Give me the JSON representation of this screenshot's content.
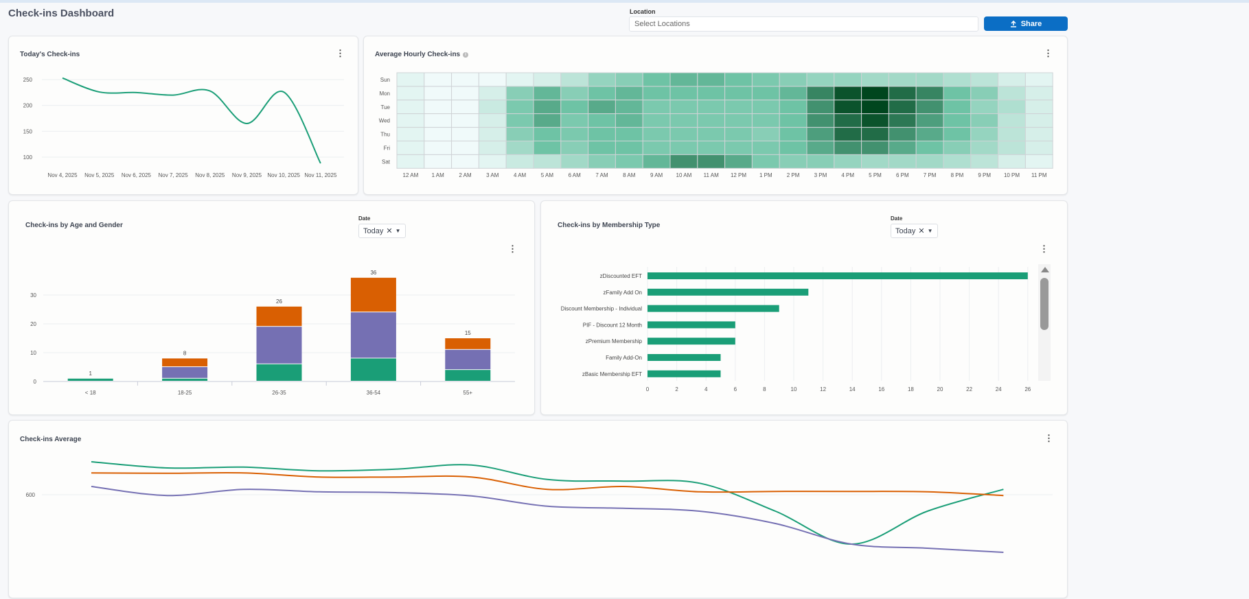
{
  "header": {
    "title": "Check-ins Dashboard",
    "location_label": "Location",
    "location_placeholder": "Select Locations",
    "share_label": "Share"
  },
  "colors": {
    "accent": "#1a9e77",
    "orange": "#d95f02",
    "purple": "#7570b3",
    "share": "#0b6ec5"
  },
  "today": {
    "title": "Today's Check-ins",
    "chart_data": {
      "type": "line",
      "categories": [
        "Nov 4, 2025",
        "Nov 5, 2025",
        "Nov 6, 2025",
        "Nov 7, 2025",
        "Nov 8, 2025",
        "Nov 9, 2025",
        "Nov 10, 2025",
        "Nov 11, 2025"
      ],
      "values": [
        253,
        226,
        225,
        220,
        228,
        165,
        226,
        88
      ],
      "yticks": [
        "250",
        "200",
        "150",
        "100"
      ],
      "ylim": [
        80,
        260
      ],
      "grid": true
    }
  },
  "hourly": {
    "title": "Average Hourly Check-ins",
    "chart_data": {
      "type": "heatmap",
      "rows": [
        "Sun",
        "Mon",
        "Tue",
        "Wed",
        "Thu",
        "Fri",
        "Sat"
      ],
      "columns": [
        "12 AM",
        "1 AM",
        "2 AM",
        "3 AM",
        "4 AM",
        "5 AM",
        "6 AM",
        "7 AM",
        "8 AM",
        "9 AM",
        "10 AM",
        "11 AM",
        "12 PM",
        "1 PM",
        "2 PM",
        "3 PM",
        "4 PM",
        "5 PM",
        "6 PM",
        "7 PM",
        "8 PM",
        "9 PM",
        "10 PM",
        "11 PM"
      ],
      "values": [
        [
          0.5,
          0,
          0,
          0,
          0.5,
          1,
          2,
          3.5,
          4,
          5,
          5.5,
          5.5,
          5,
          4.5,
          4,
          3.5,
          3.5,
          3,
          3,
          3,
          2.5,
          2,
          1,
          0.5
        ],
        [
          0.5,
          0,
          0,
          1,
          4,
          5.5,
          4,
          5,
          5.5,
          5,
          5,
          5,
          5,
          5,
          5.5,
          7.5,
          9.5,
          10,
          8.5,
          7.5,
          5,
          4,
          2,
          1
        ],
        [
          0.5,
          0,
          0,
          1.5,
          4.5,
          6,
          5,
          6,
          5.5,
          4.5,
          4.5,
          4.5,
          4.5,
          4.5,
          5,
          7,
          9.5,
          10,
          8.5,
          7,
          5,
          3.5,
          2.5,
          1
        ],
        [
          0.5,
          0,
          0,
          1,
          4.5,
          6,
          4.5,
          5,
          5.5,
          4.5,
          4.5,
          4.5,
          4.5,
          4.5,
          5,
          7,
          8.5,
          9.5,
          8,
          6.5,
          5,
          4,
          2,
          1
        ],
        [
          0.5,
          0,
          0,
          1,
          4,
          5,
          4.5,
          5,
          5,
          4.5,
          4.5,
          4.5,
          4.5,
          4,
          5,
          6.5,
          8.5,
          8.5,
          7,
          6,
          5,
          3.5,
          2,
          1
        ],
        [
          0.5,
          0,
          0,
          1,
          3,
          5,
          4,
          5,
          5,
          4.5,
          4.5,
          4.5,
          4.5,
          4.5,
          5,
          6,
          7,
          7,
          6,
          5,
          4,
          3,
          2,
          1
        ],
        [
          0.5,
          0,
          0,
          0.5,
          1.5,
          2,
          3,
          4,
          4.5,
          5.5,
          7,
          7,
          6,
          4.5,
          4,
          4,
          3.5,
          3,
          3,
          3,
          2.5,
          2,
          1,
          0.5
        ]
      ]
    }
  },
  "age": {
    "title": "Check-ins by Age and Gender",
    "date_label": "Date",
    "date_value": "Today",
    "chart_data": {
      "type": "bar",
      "stacked": true,
      "categories": [
        "< 18",
        "18-25",
        "26-35",
        "36-54",
        "55+"
      ],
      "series": [
        {
          "values": [
            1,
            1,
            6,
            8,
            4
          ],
          "color": "#1a9e77"
        },
        {
          "values": [
            0,
            4,
            13,
            16,
            7
          ],
          "color": "#7570b3"
        },
        {
          "values": [
            0,
            3,
            7,
            12,
            4
          ],
          "color": "#d95f02"
        }
      ],
      "totals": [
        "1",
        "8",
        "26",
        "36",
        "15"
      ],
      "yticks": [
        "30",
        "20",
        "10",
        "0"
      ],
      "ylim": [
        0,
        40
      ],
      "grid": true
    }
  },
  "membership": {
    "title": "Check-ins by Membership Type",
    "date_label": "Date",
    "date_value": "Today",
    "chart_data": {
      "type": "bar",
      "orientation": "horizontal",
      "categories": [
        "zDiscounted EFT",
        "zFamily Add On",
        "Discount Membership - Individual",
        "PIF - Discount 12 Month",
        "zPremium Membership",
        "Family Add-On",
        "zBasic Membership EFT"
      ],
      "values": [
        26,
        11,
        9,
        6,
        6,
        5,
        5
      ],
      "xticks": [
        "0",
        "2",
        "4",
        "6",
        "8",
        "10",
        "12",
        "14",
        "16",
        "18",
        "20",
        "22",
        "24",
        "26"
      ],
      "xlim": [
        0,
        27
      ],
      "grid": true
    }
  },
  "average": {
    "title": "Check-ins Average",
    "chart_data": {
      "type": "line",
      "yticks": [
        "600"
      ],
      "series": [
        {
          "color": "#1a9e77",
          "values": [
            680,
            665,
            667,
            658,
            662,
            672,
            637,
            633,
            628,
            560,
            480,
            560,
            613
          ]
        },
        {
          "color": "#d95f02",
          "values": [
            653,
            652,
            653,
            643,
            643,
            643,
            613,
            620,
            607,
            608,
            608,
            607,
            598
          ]
        },
        {
          "color": "#7570b3",
          "values": [
            620,
            598,
            613,
            607,
            605,
            597,
            572,
            567,
            560,
            530,
            480,
            470,
            460
          ]
        }
      ]
    }
  }
}
